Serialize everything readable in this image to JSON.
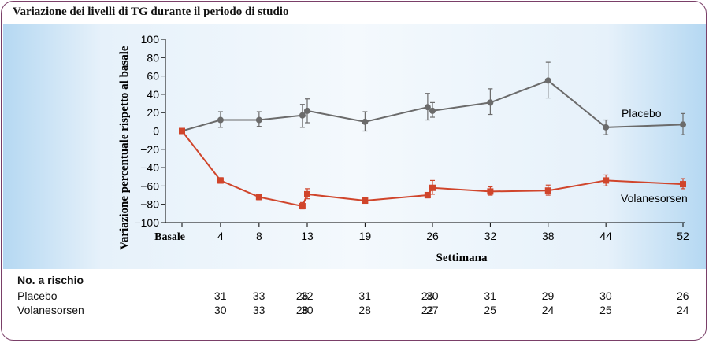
{
  "title": "Variazione dei livelli di TG durante il periodo di studio",
  "colors": {
    "placebo": "#6b6b6b",
    "volanesorsen": "#d0452b",
    "frame": "#7a3f68"
  },
  "chart_data": {
    "type": "line",
    "title": "Variazione dei livelli di TG durante il periodo di studio",
    "xlabel": "Settimana",
    "ylabel": "Variazione percentuale rispetto al basale",
    "xticks": [
      {
        "x": 0,
        "label": "Basale"
      },
      {
        "x": 4,
        "label": "4"
      },
      {
        "x": 8,
        "label": "8"
      },
      {
        "x": 13,
        "label": "13"
      },
      {
        "x": 19,
        "label": "19"
      },
      {
        "x": 26,
        "label": "26"
      },
      {
        "x": 32,
        "label": "32"
      },
      {
        "x": 38,
        "label": "38"
      },
      {
        "x": 44,
        "label": "44"
      },
      {
        "x": 52,
        "label": "52"
      }
    ],
    "yticks": [
      100,
      80,
      60,
      40,
      20,
      0,
      -20,
      -40,
      -60,
      -80,
      -100
    ],
    "ylim": [
      -100,
      100
    ],
    "xlim": [
      0,
      52
    ],
    "reference_line": 0,
    "series": [
      {
        "name": "Placebo",
        "color": "#6b6b6b",
        "marker": "circle",
        "points": [
          {
            "x": 0,
            "y": 0,
            "lo": 0,
            "hi": 0
          },
          {
            "x": 4,
            "y": 12,
            "lo": 4,
            "hi": 21
          },
          {
            "x": 8,
            "y": 12,
            "lo": 5,
            "hi": 21
          },
          {
            "x": 12.5,
            "y": 17,
            "lo": 4,
            "hi": 29
          },
          {
            "x": 13,
            "y": 22,
            "lo": 9,
            "hi": 35
          },
          {
            "x": 19,
            "y": 10,
            "lo": 0,
            "hi": 21
          },
          {
            "x": 25.5,
            "y": 26,
            "lo": 12,
            "hi": 41
          },
          {
            "x": 26,
            "y": 22,
            "lo": 15,
            "hi": 31
          },
          {
            "x": 32,
            "y": 31,
            "lo": 18,
            "hi": 46
          },
          {
            "x": 38,
            "y": 55,
            "lo": 36,
            "hi": 75
          },
          {
            "x": 44,
            "y": 4,
            "lo": -4,
            "hi": 12
          },
          {
            "x": 52,
            "y": 7,
            "lo": -4,
            "hi": 19
          }
        ]
      },
      {
        "name": "Volanesorsen",
        "color": "#d0452b",
        "marker": "square",
        "points": [
          {
            "x": 0,
            "y": 0,
            "lo": 0,
            "hi": 0
          },
          {
            "x": 4,
            "y": -54,
            "lo": -57,
            "hi": -51
          },
          {
            "x": 8,
            "y": -72,
            "lo": -75,
            "hi": -69
          },
          {
            "x": 12.5,
            "y": -82,
            "lo": -85,
            "hi": -78
          },
          {
            "x": 13,
            "y": -69,
            "lo": -74,
            "hi": -63
          },
          {
            "x": 19,
            "y": -76,
            "lo": -78,
            "hi": -73
          },
          {
            "x": 25.5,
            "y": -70,
            "lo": -73,
            "hi": -67
          },
          {
            "x": 26,
            "y": -62,
            "lo": -69,
            "hi": -54
          },
          {
            "x": 32,
            "y": -66,
            "lo": -70,
            "hi": -61
          },
          {
            "x": 38,
            "y": -65,
            "lo": -70,
            "hi": -59
          },
          {
            "x": 44,
            "y": -54,
            "lo": -60,
            "hi": -48
          },
          {
            "x": 52,
            "y": -58,
            "lo": -63,
            "hi": -52
          }
        ]
      }
    ]
  },
  "risk_table": {
    "title": "No. a rischio",
    "rows": [
      {
        "label": "Placebo",
        "values": [
          {
            "x": 4,
            "v": "31"
          },
          {
            "x": 8,
            "v": "33"
          },
          {
            "x": 12.5,
            "v": "26"
          },
          {
            "x": 13,
            "v": "32"
          },
          {
            "x": 19,
            "v": "31"
          },
          {
            "x": 25.5,
            "v": "26"
          },
          {
            "x": 26,
            "v": "30"
          },
          {
            "x": 32,
            "v": "31"
          },
          {
            "x": 38,
            "v": "29"
          },
          {
            "x": 44,
            "v": "30"
          },
          {
            "x": 52,
            "v": "26"
          }
        ]
      },
      {
        "label": "Volanesorsen",
        "values": [
          {
            "x": 4,
            "v": "30"
          },
          {
            "x": 8,
            "v": "33"
          },
          {
            "x": 12.5,
            "v": "28"
          },
          {
            "x": 13,
            "v": "30"
          },
          {
            "x": 19,
            "v": "28"
          },
          {
            "x": 25.5,
            "v": "22"
          },
          {
            "x": 26,
            "v": "27"
          },
          {
            "x": 32,
            "v": "25"
          },
          {
            "x": 38,
            "v": "24"
          },
          {
            "x": 44,
            "v": "25"
          },
          {
            "x": 52,
            "v": "24"
          }
        ]
      }
    ]
  }
}
